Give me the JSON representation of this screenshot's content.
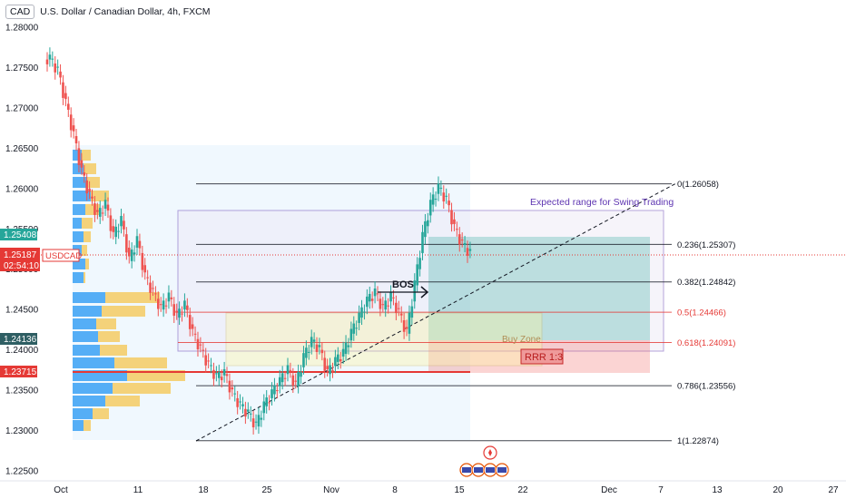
{
  "header": {
    "currency_badge": "CAD",
    "title": "U.S. Dollar / Canadian Dollar, 4h, FXCM"
  },
  "price_labels": {
    "top_green": "1.25408",
    "current_price": "1.25187",
    "countdown": "02:54:10",
    "symbol_tag": "USDCAD",
    "teal_level": "1.24136",
    "red_level": "1.23715"
  },
  "annotations": {
    "bos": "BOS",
    "expected_range": "Expected range for Swing Trading",
    "buy_zone": "Buy Zone",
    "rrr": "RRR 1:3"
  },
  "fib_levels": [
    {
      "label": "0(1.26058)",
      "price": 1.26058,
      "color": "#131722"
    },
    {
      "label": "0.236(1.25307)",
      "price": 1.25307,
      "color": "#131722"
    },
    {
      "label": "0.382(1.24842)",
      "price": 1.24842,
      "color": "#131722"
    },
    {
      "label": "0.5(1.24466)",
      "price": 1.24466,
      "color": "#e53935"
    },
    {
      "label": "0.618(1.24091)",
      "price": 1.24091,
      "color": "#e53935"
    },
    {
      "label": "0.786(1.23556)",
      "price": 1.23556,
      "color": "#131722"
    },
    {
      "label": "1(1.22874)",
      "price": 1.22874,
      "color": "#131722"
    }
  ],
  "chart_data": {
    "type": "candlestick",
    "title": "U.S. Dollar / Canadian Dollar, 4h, FXCM",
    "y_axis_ticks": [
      "1.28000",
      "1.27500",
      "1.27000",
      "1.26500",
      "1.26000",
      "1.25500",
      "1.25000",
      "1.24500",
      "1.24000",
      "1.23500",
      "1.23000",
      "1.22500"
    ],
    "x_axis_ticks": [
      "Oct",
      "11",
      "18",
      "25",
      "Nov",
      "8",
      "15",
      "22",
      "Dec",
      "7",
      "13",
      "20",
      "27"
    ],
    "ylim": [
      1.2225,
      1.2825
    ],
    "current_price": 1.25187,
    "price_path": [
      1.276,
      1.2745,
      1.2705,
      1.2665,
      1.262,
      1.259,
      1.2565,
      1.258,
      1.254,
      1.256,
      1.251,
      1.2535,
      1.249,
      1.247,
      1.245,
      1.2465,
      1.244,
      1.2455,
      1.242,
      1.24,
      1.238,
      1.2365,
      1.237,
      1.2345,
      1.233,
      1.232,
      1.2305,
      1.233,
      1.2345,
      1.236,
      1.2375,
      1.2355,
      1.239,
      1.241,
      1.24,
      1.237,
      1.2385,
      1.2395,
      1.242,
      1.244,
      1.246,
      1.247,
      1.245,
      1.2465,
      1.2445,
      1.242,
      1.248,
      1.254,
      1.258,
      1.26,
      1.2585,
      1.255,
      1.253,
      1.2519
    ]
  }
}
